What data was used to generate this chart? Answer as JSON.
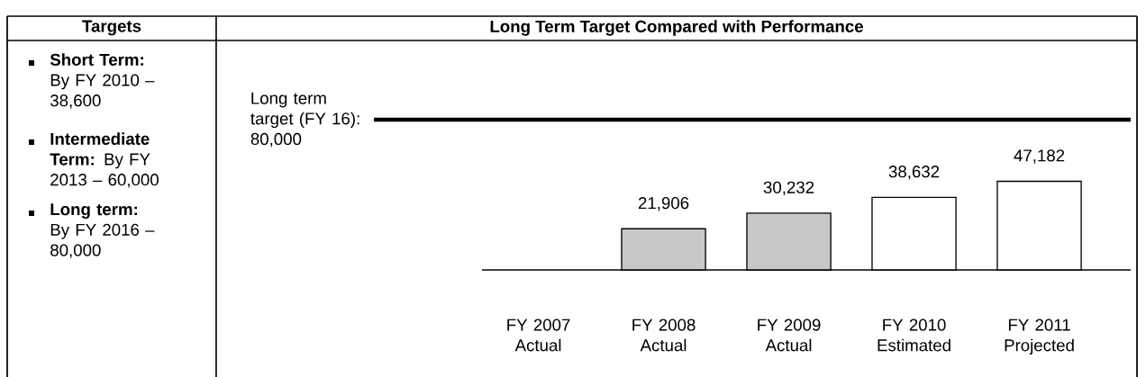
{
  "chart_data": {
    "type": "bar",
    "title": "Long Term Target Compared with Performance",
    "categories": [
      "FY 2007 Actual",
      "FY 2008 Actual",
      "FY 2009 Actual",
      "FY 2010 Estimated",
      "FY 2011 Projected"
    ],
    "values": [
      null,
      21906,
      30232,
      38632,
      47182
    ],
    "value_labels": [
      null,
      "21,906",
      "30,232",
      "38,632",
      "47,182"
    ],
    "colors": [
      "#c8c8c8",
      "#c8c8c8",
      "#c8c8c8",
      "#ffffff",
      "#ffffff"
    ],
    "ylim": [
      0,
      80000
    ],
    "tick_labels": "x",
    "ref_lines": [
      {
        "axis": "y",
        "value": 80000,
        "label": "Long term target (FY 16): 80,000",
        "color": "#000000",
        "line_style": "solid"
      }
    ],
    "annotations": [
      "Targets",
      "**Short Term:** By FY 2010 – 38,600",
      "**Intermediate Term:** By FY 2013 – 60,000",
      "**Long term:** By FY 2016 – 80,000"
    ]
  }
}
